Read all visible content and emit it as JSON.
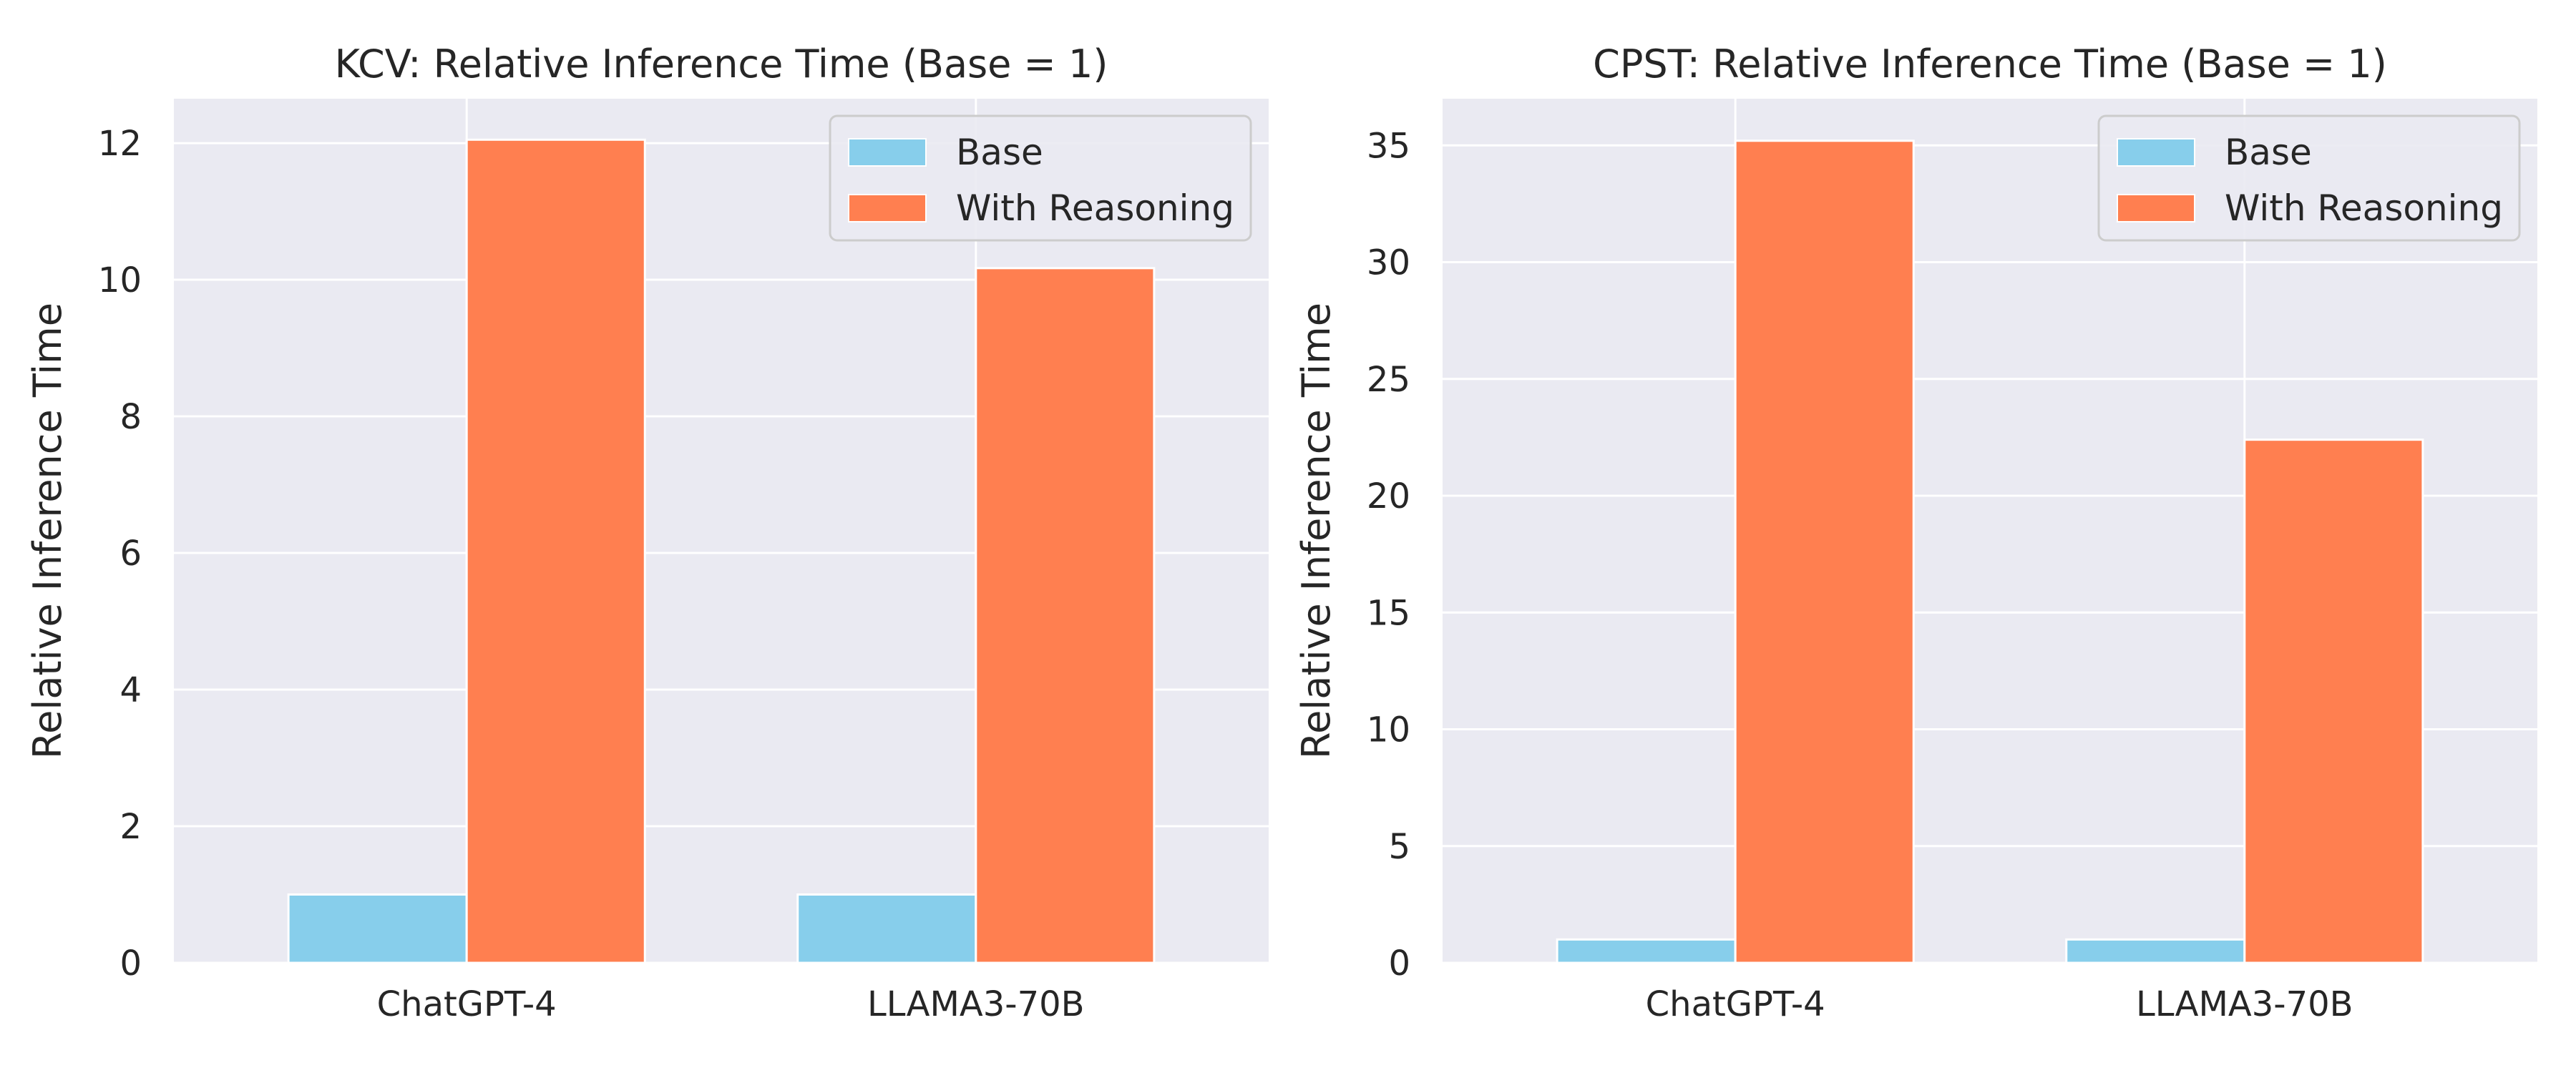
{
  "chart_data": [
    {
      "type": "bar",
      "title": "KCV: Relative Inference Time (Base = 1)",
      "xlabel": "",
      "ylabel": "Relative Inference Time",
      "categories": [
        "ChatGPT-4",
        "LLAMA3-70B"
      ],
      "series": [
        {
          "name": "Base",
          "values": [
            1.0,
            1.0
          ],
          "color": "#87CEEB"
        },
        {
          "name": "With Reasoning",
          "values": [
            12.05,
            10.17
          ],
          "color": "#FF7F50"
        }
      ],
      "ylim": [
        0,
        12.65
      ],
      "yticks": [
        0,
        2,
        4,
        6,
        8,
        10,
        12
      ],
      "grid": true,
      "legend": "top-right"
    },
    {
      "type": "bar",
      "title": "CPST: Relative Inference Time (Base = 1)",
      "xlabel": "",
      "ylabel": "Relative Inference Time",
      "categories": [
        "ChatGPT-4",
        "LLAMA3-70B"
      ],
      "series": [
        {
          "name": "Base",
          "values": [
            1.0,
            1.0
          ],
          "color": "#87CEEB"
        },
        {
          "name": "With Reasoning",
          "values": [
            35.2,
            22.4
          ],
          "color": "#FF7F50"
        }
      ],
      "ylim": [
        0,
        37.0
      ],
      "yticks": [
        0,
        5,
        10,
        15,
        20,
        25,
        30,
        35
      ],
      "grid": true,
      "legend": "top-right"
    }
  ],
  "theme": {
    "plot_background": "#EAEAF2",
    "grid_color": "#FFFFFF",
    "text_color": "#262626"
  }
}
